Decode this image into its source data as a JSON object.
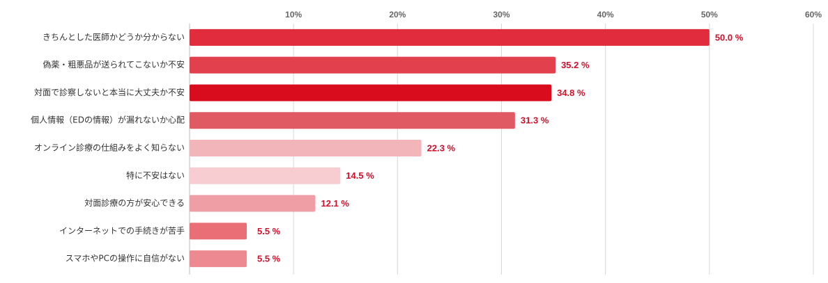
{
  "chart_data": {
    "type": "bar",
    "orientation": "horizontal",
    "categories": [
      "きちんとした医師かどうか分からない",
      "偽薬・粗悪品が送られてこないか不安",
      "対面で診察しないと本当に大丈夫か不安",
      "個人情報（EDの情報）が漏れないか心配",
      "オンライン診療の仕組みをよく知らない",
      "特に不安はない",
      "対面診療の方が安心できる",
      "インターネットでの手続きが苦手",
      "スマホやPCの操作に自信がない"
    ],
    "values": [
      50.0,
      35.2,
      34.8,
      31.3,
      22.3,
      14.5,
      12.1,
      5.5,
      5.5
    ],
    "value_labels": [
      "50.0 %",
      "35.2 %",
      "34.8 %",
      "31.3 %",
      "22.3 %",
      "14.5 %",
      "12.1 %",
      "5.5 %",
      "5.5 %"
    ],
    "colors": [
      "#e02c3c",
      "#e2404c",
      "#d80c1c",
      "#e05a64",
      "#f2b6ba",
      "#f7cdd1",
      "#ef9ea5",
      "#e96e76",
      "#ed8990"
    ],
    "xlim": [
      0,
      60
    ],
    "xticks": [
      {
        "value": 10,
        "label": "10%"
      },
      {
        "value": 20,
        "label": "20%"
      },
      {
        "value": 30,
        "label": "30%"
      },
      {
        "value": 40,
        "label": "40%"
      },
      {
        "value": 50,
        "label": "50%"
      },
      {
        "value": 60,
        "label": "60%"
      }
    ],
    "grid": true
  }
}
